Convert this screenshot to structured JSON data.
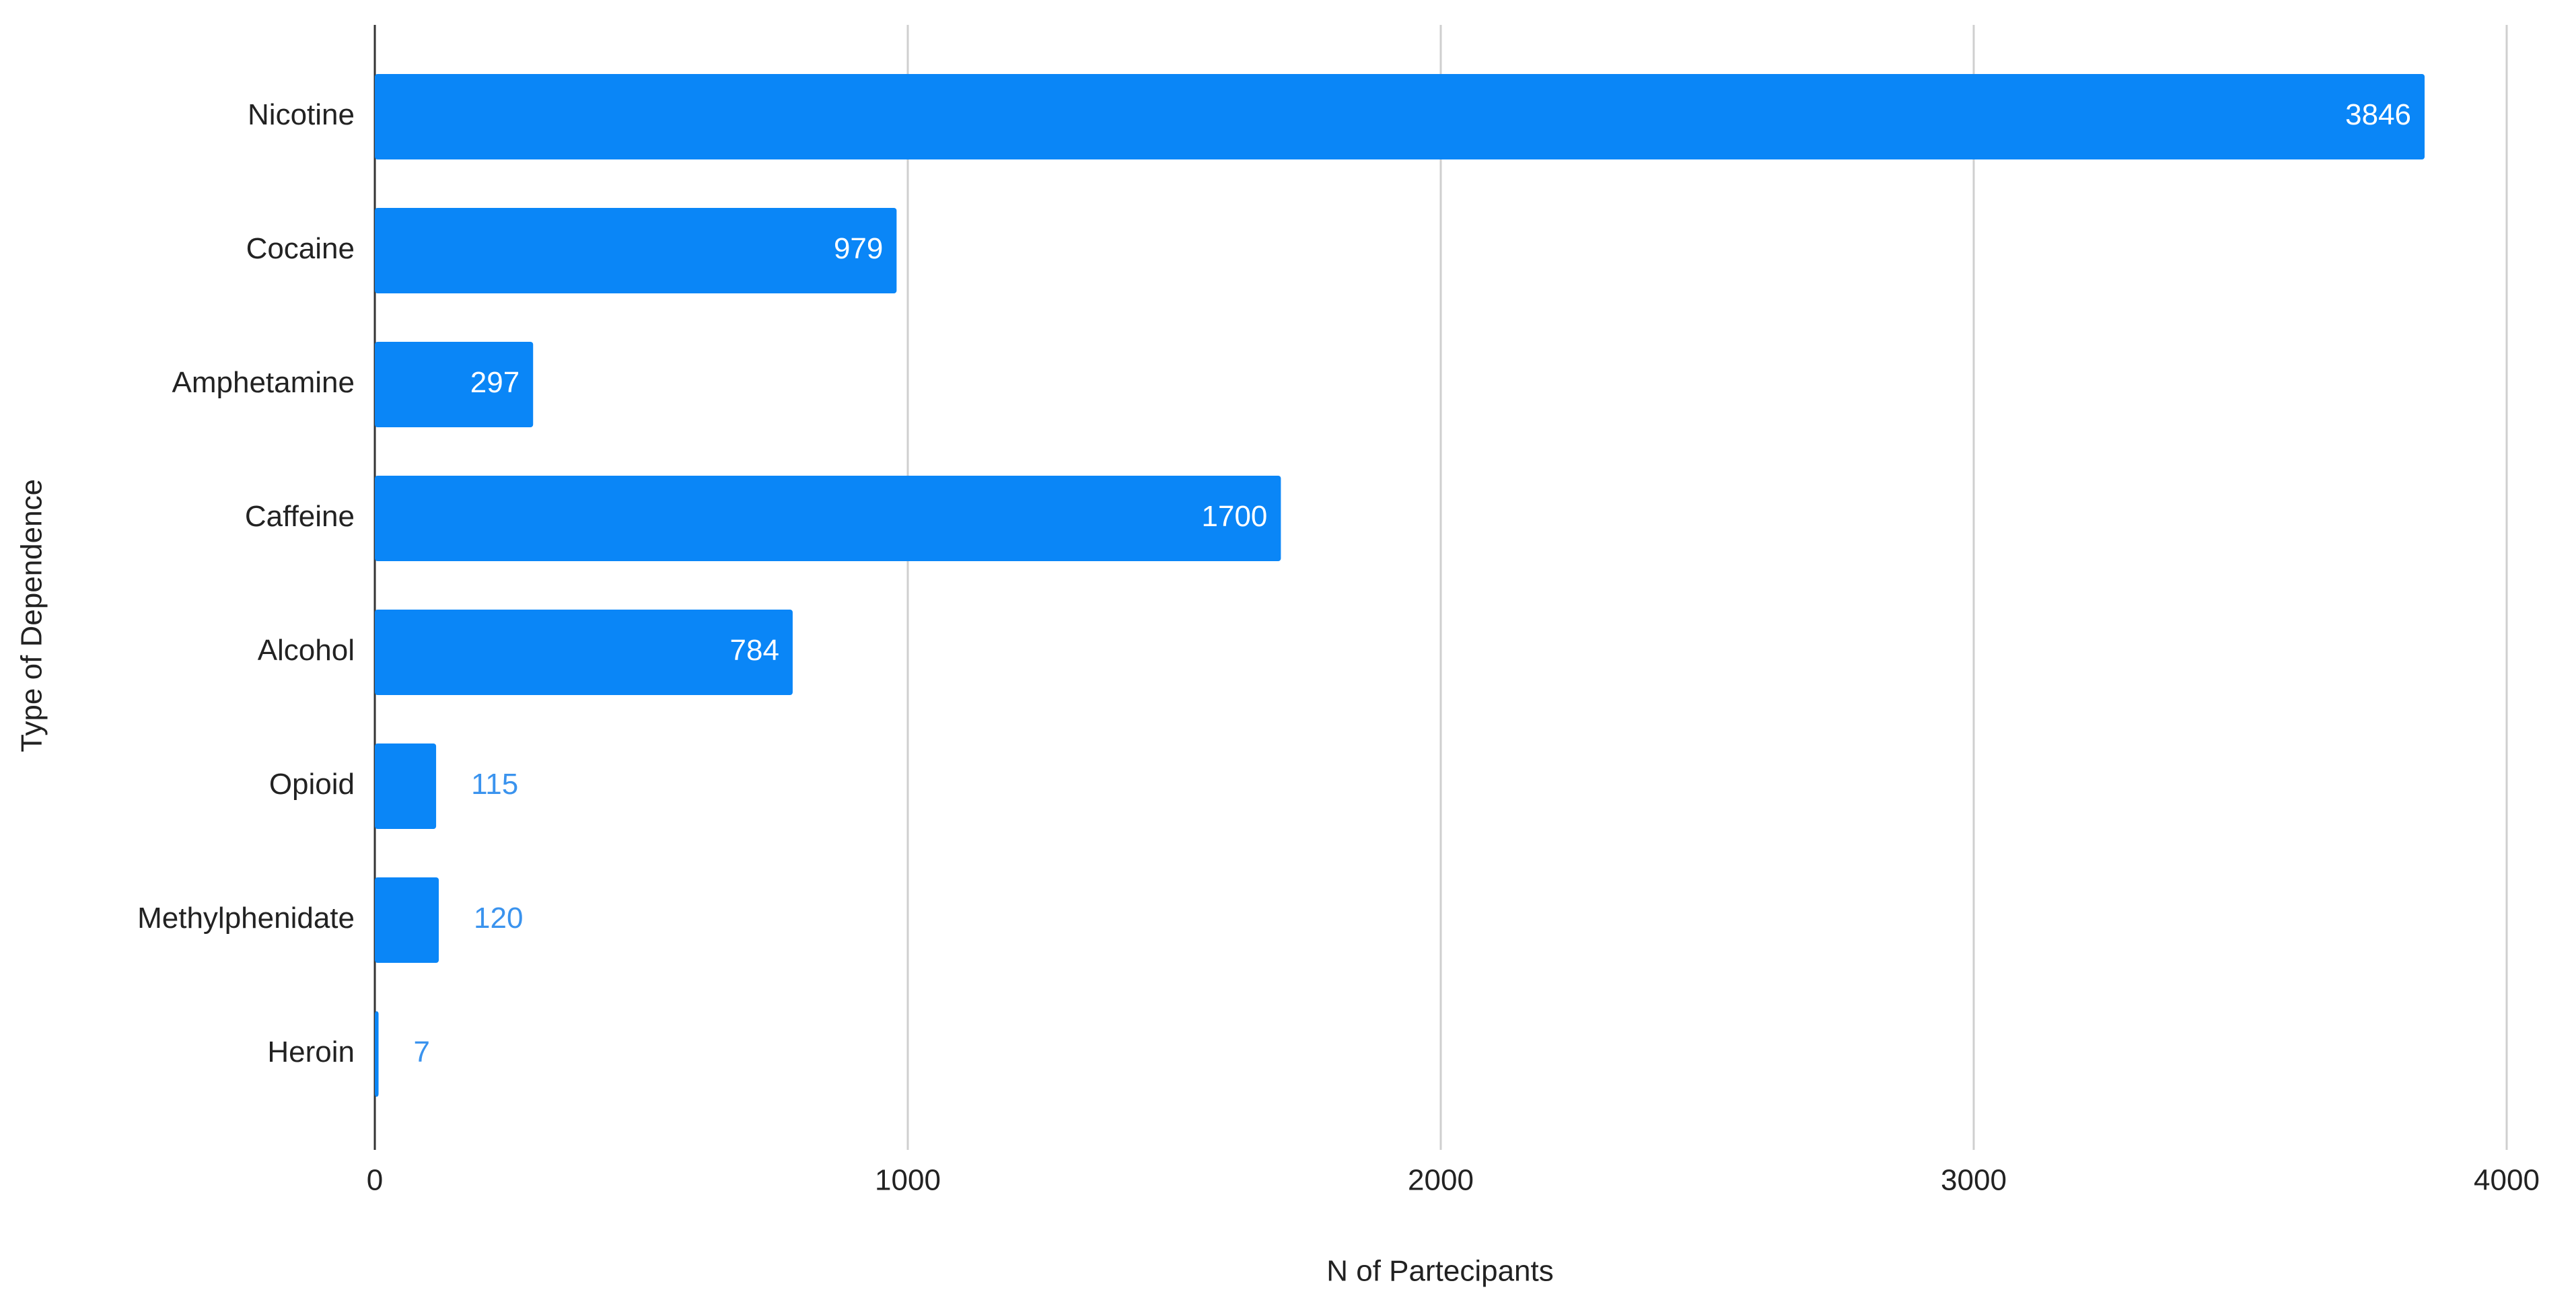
{
  "chart_data": {
    "type": "bar",
    "orientation": "horizontal",
    "x_label": "N of Partecipants",
    "y_label": "Type of Dependence",
    "categories": [
      "Nicotine",
      "Cocaine",
      "Amphetamine",
      "Caffeine",
      "Alcohol",
      "Opioid",
      "Methylphenidate",
      "Heroin"
    ],
    "values": [
      3846,
      979,
      297,
      1700,
      784,
      115,
      120,
      7
    ],
    "color": "#0a86f7",
    "xlim": [
      0,
      4000
    ],
    "xticks": [
      0,
      1000,
      2000,
      3000,
      4000
    ],
    "grid": true
  }
}
